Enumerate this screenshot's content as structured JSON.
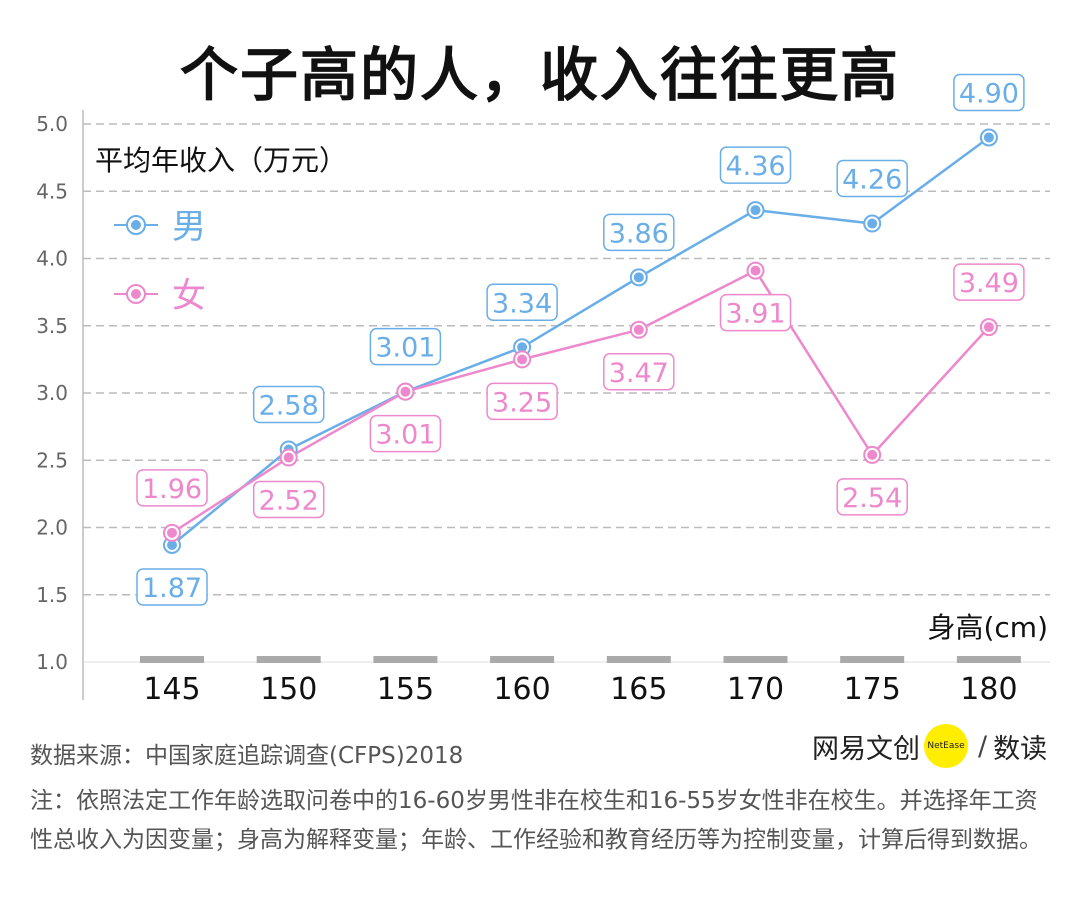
{
  "title": "个子高的人，收入往往更高",
  "chart_data": {
    "type": "line",
    "ylabel": "平均年收入（万元）",
    "xlabel": "身高(cm)",
    "categories": [
      "145",
      "150",
      "155",
      "160",
      "165",
      "170",
      "175",
      "180"
    ],
    "ylim": [
      1.0,
      5.0
    ],
    "yticks": [
      "1.0",
      "1.5",
      "2.0",
      "2.5",
      "3.0",
      "3.5",
      "4.0",
      "4.5",
      "5.0"
    ],
    "grid": true,
    "legend_placement": "top-left",
    "series": [
      {
        "name": "男",
        "color": "#6aaee8",
        "values": [
          1.87,
          2.58,
          3.01,
          3.34,
          3.86,
          4.36,
          4.26,
          4.9
        ],
        "labels": [
          "1.87",
          "2.58",
          "3.01",
          "3.34",
          "3.86",
          "4.36",
          "4.26",
          "4.90"
        ],
        "label_side": [
          "below",
          "above",
          "above",
          "above",
          "above",
          "above",
          "above",
          "above"
        ]
      },
      {
        "name": "女",
        "color": "#ee88cc",
        "values": [
          1.96,
          2.52,
          3.01,
          3.25,
          3.47,
          3.91,
          2.54,
          3.49
        ],
        "labels": [
          "1.96",
          "2.52",
          "3.01",
          "3.25",
          "3.47",
          "3.91",
          "2.54",
          "3.49"
        ],
        "label_side": [
          "above",
          "below",
          "below",
          "below",
          "below",
          "below",
          "below",
          "above"
        ]
      }
    ]
  },
  "source": "数据来源：中国家庭追踪调查(CFPS)2018",
  "note": "注：依照法定工作年龄选取问卷中的16-60岁男性非在校生和16-55岁女性非在校生。并选择年工资性总收入为因变量；身高为解释变量；年龄、工作经验和教育经历等为控制变量，计算后得到数据。",
  "logo": {
    "left": "网易文创",
    "circle": "NetEase",
    "sep": "/",
    "right": "数读"
  }
}
